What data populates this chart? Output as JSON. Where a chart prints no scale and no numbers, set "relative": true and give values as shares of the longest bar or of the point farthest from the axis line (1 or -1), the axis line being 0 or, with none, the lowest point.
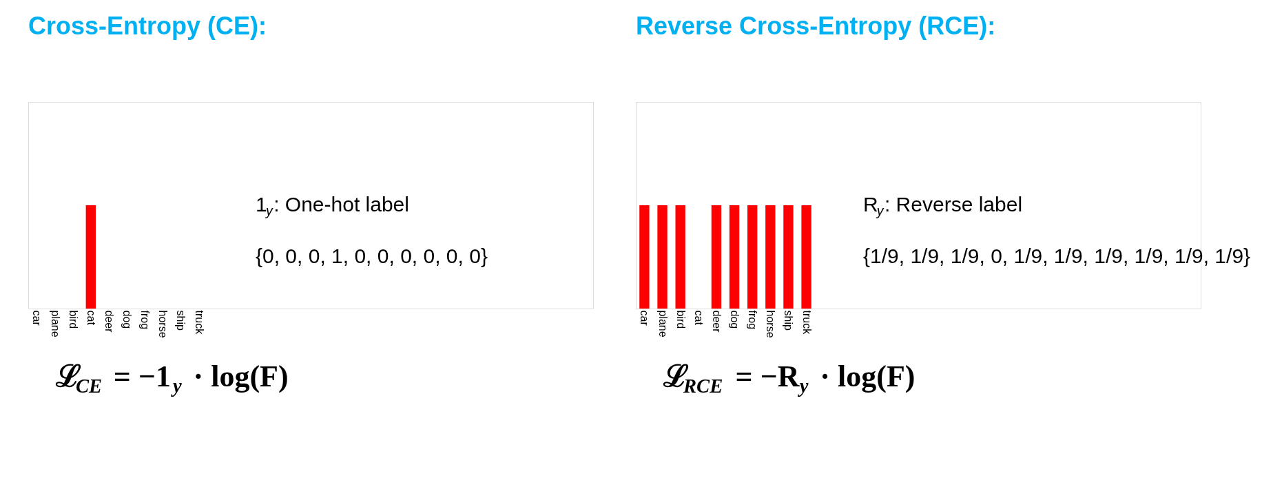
{
  "chart_data": [
    {
      "type": "bar",
      "title": "Cross-Entropy (CE):",
      "relative": true,
      "categories": [
        "car",
        "plane",
        "bird",
        "cat",
        "deer",
        "dog",
        "frog",
        "horse",
        "ship",
        "truck"
      ],
      "values": [
        0,
        0,
        0,
        1,
        0,
        0,
        0,
        0,
        0,
        0
      ],
      "color": "#ff0000",
      "grid": false,
      "legend": false,
      "tick_labels": "x",
      "annotations": [
        "1$_{y}$: One-hot label",
        "{0, 0, 0, 1, 0, 0, 0, 0, 0, 0}",
        "ℒ$_{CE}$ = −1$_{y}$ · log(F)"
      ]
    },
    {
      "type": "bar",
      "title": "Reverse Cross-Entropy (RCE):",
      "relative": true,
      "categories": [
        "car",
        "plane",
        "bird",
        "cat",
        "deer",
        "dog",
        "frog",
        "horse",
        "ship",
        "truck"
      ],
      "values": [
        1,
        1,
        1,
        0,
        1,
        1,
        1,
        1,
        1,
        1
      ],
      "color": "#ff0000",
      "grid": false,
      "legend": false,
      "tick_labels": "x",
      "annotations": [
        "R$_{y}$: Reverse label",
        "{1/9, 1/9, 1/9, 0, 1/9, 1/9, 1/9, 1/9, 1/9, 1/9}",
        "ℒ$_{RCE}$ = −R$_{y}$ · log(F)"
      ]
    }
  ]
}
